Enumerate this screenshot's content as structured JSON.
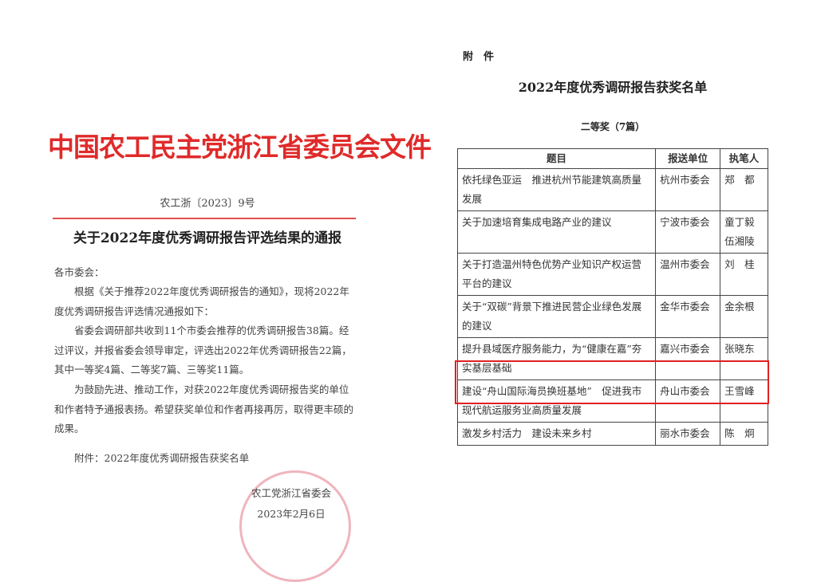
{
  "left": {
    "org_title": "中国农工民主党浙江省委员会文件",
    "doc_number": "农工浙〔2023〕9号",
    "heading": "关于2022年度优秀调研报告评选结果的通报",
    "salutation": "各市委会：",
    "paragraphs": [
      "　　根据《关于推荐2022年度优秀调研报告的通知》，现将2022年度优秀调研报告评选情况通报如下：",
      "　　省委会调研部共收到11个市委会推荐的优秀调研报告38篇。经过评议，并报省委会领导审定，评选出2022年优秀调研报告22篇，其中一等奖4篇、二等奖7篇、三等奖11篇。",
      "　　为鼓励先进、推动工作，对获2022年度优秀调研报告奖的单位和作者特予通报表扬。希望获奖单位和作者再接再厉，取得更丰硕的成果。"
    ],
    "attachment": "　　附件：2022年度优秀调研报告获奖名单",
    "signature": "农工党浙江省委会",
    "date": "2023年2月6日",
    "accent_color": "#e02a2a"
  },
  "right": {
    "annex_label": "附　件",
    "title": "2022年度优秀调研报告获奖名单",
    "prize_level": "二等奖（7篇）",
    "headers": [
      "题目",
      "报送单位",
      "执笔人"
    ],
    "rows": [
      [
        "依托绿色亚运　推进杭州节能建筑高质量发展",
        "杭州市委会",
        "郑　都"
      ],
      [
        "关于加速培育集成电路产业的建议",
        "宁波市委会",
        "童丁毅\n伍湘陵"
      ],
      [
        "关于打造温州特色优势产业知识产权运营平台的建议",
        "温州市委会",
        "刘　桂"
      ],
      [
        "关于“双碳”背景下推进民营企业绿色发展的建议",
        "金华市委会",
        "金余根"
      ],
      [
        "提升县域医疗服务能力，为“健康在嘉”夯实基层基础",
        "嘉兴市委会",
        "张晓东"
      ],
      [
        "建设“舟山国际海员换班基地”　促进我市现代航运服务业高质量发展",
        "舟山市委会",
        "王雪峰"
      ],
      [
        "激发乡村活力　建设未来乡村",
        "丽水市委会",
        "陈　炯"
      ]
    ],
    "highlight_color": "#e02020"
  }
}
